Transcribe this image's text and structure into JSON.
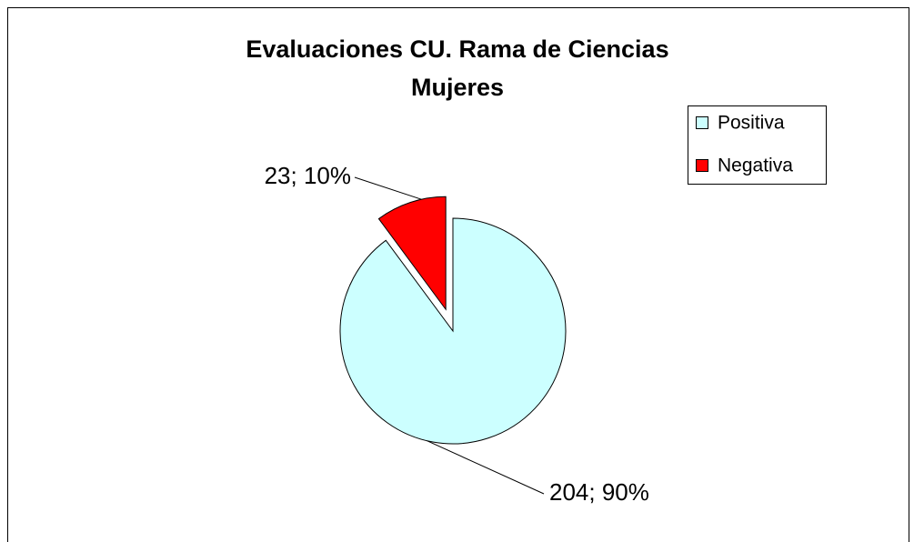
{
  "chart_data": {
    "type": "pie",
    "title": [
      "Evaluaciones CU. Rama de Ciencias",
      "Mujeres"
    ],
    "categories": [
      "Positiva",
      "Negativa"
    ],
    "values": [
      204,
      23
    ],
    "value_labels": [
      "204; 90%",
      "23; 10%"
    ],
    "colors": [
      "#ccffff",
      "#ff0000"
    ],
    "exploded": [
      false,
      true
    ],
    "legend": "right"
  }
}
